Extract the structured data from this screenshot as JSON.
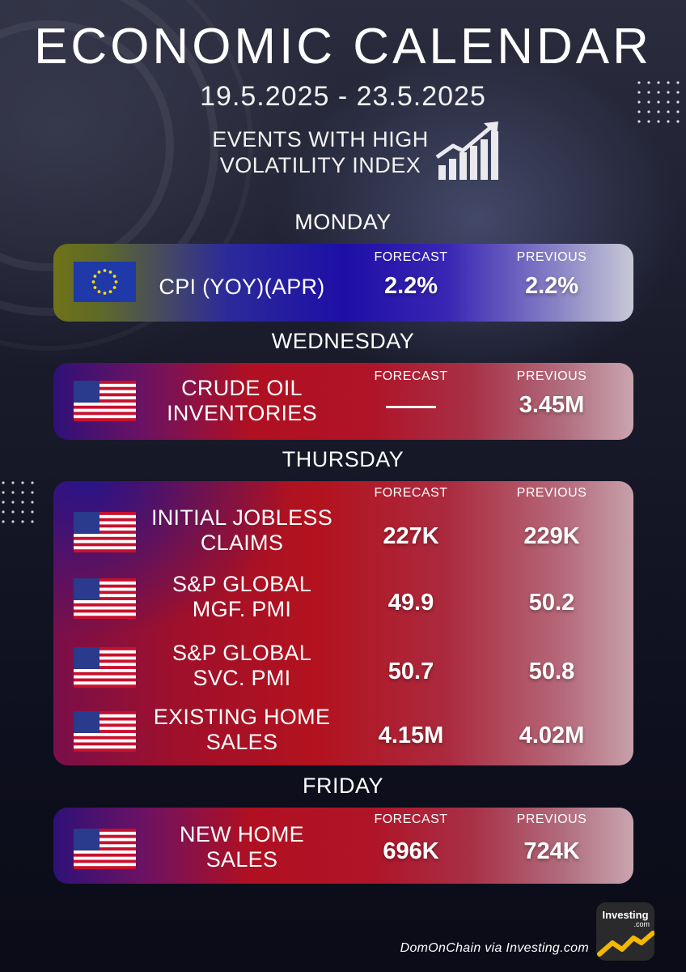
{
  "header": {
    "title": "ECONOMIC CALENDAR",
    "dates": "19.5.2025 - 23.5.2025",
    "subtitle_line1": "EVENTS WITH HIGH",
    "subtitle_line2": "VOLATILITY INDEX",
    "icon": "bar-chart-growth-icon"
  },
  "column_labels": {
    "forecast": "FORECAST",
    "previous": "PREVIOUS"
  },
  "days": [
    {
      "day": "MONDAY",
      "events": [
        {
          "flag": "eu-flag-icon",
          "name_line1": "CPI (YOY)(APR)",
          "name_line2": "",
          "forecast": "2.2%",
          "previous": "2.2%"
        }
      ]
    },
    {
      "day": "WEDNESDAY",
      "events": [
        {
          "flag": "us-flag-icon",
          "name_line1": "CRUDE OIL",
          "name_line2": "INVENTORIES",
          "forecast": "",
          "previous": "3.45M"
        }
      ]
    },
    {
      "day": "THURSDAY",
      "events": [
        {
          "flag": "us-flag-icon",
          "name_line1": "INITIAL JOBLESS",
          "name_line2": "CLAIMS",
          "forecast": "227K",
          "previous": "229K"
        },
        {
          "flag": "us-flag-icon",
          "name_line1": "S&P GLOBAL",
          "name_line2": "MGF. PMI",
          "forecast": "49.9",
          "previous": "50.2"
        },
        {
          "flag": "us-flag-icon",
          "name_line1": "S&P GLOBAL",
          "name_line2": "SVC. PMI",
          "forecast": "50.7",
          "previous": "50.8"
        },
        {
          "flag": "us-flag-icon",
          "name_line1": "EXISTING HOME",
          "name_line2": "SALES",
          "forecast": "4.15M",
          "previous": "4.02M"
        }
      ]
    },
    {
      "day": "FRIDAY",
      "events": [
        {
          "flag": "us-flag-icon",
          "name_line1": "NEW HOME",
          "name_line2": "SALES",
          "forecast": "696K",
          "previous": "724K"
        }
      ]
    }
  ],
  "footer": {
    "credit": "DomOnChain via Investing.com",
    "logo_name": "Investing",
    "logo_domain": ".com"
  },
  "colors": {
    "background": "#14152a",
    "monday_card_left": "#6e7218",
    "monday_card_mid": "#1d0fa6",
    "us_card_red": "#b01021",
    "us_card_blue": "#2e1178",
    "logo_accent": "#f5b800"
  }
}
